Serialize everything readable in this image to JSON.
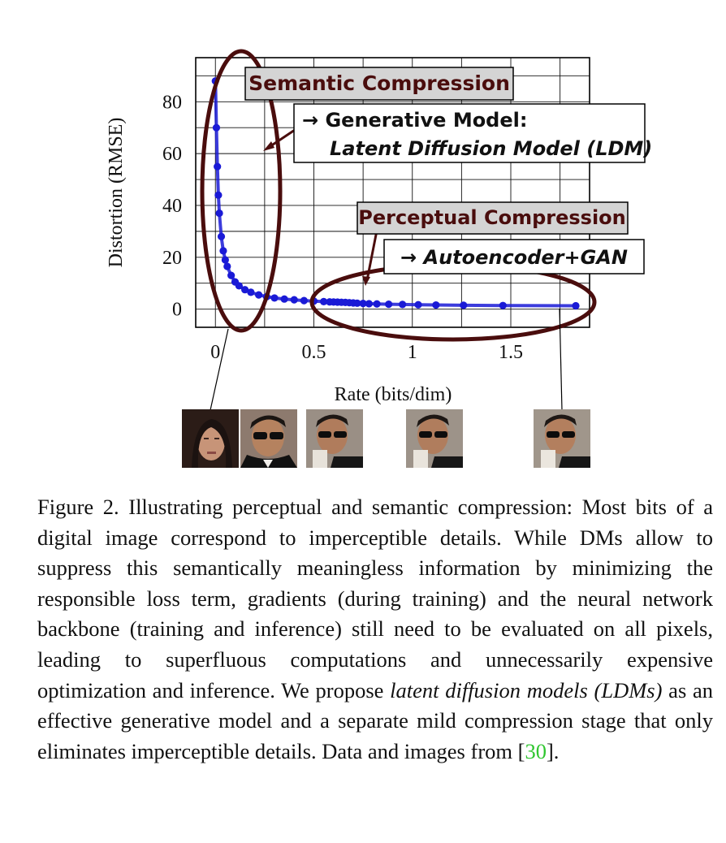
{
  "figure": {
    "semantic_label": "Semantic Compression",
    "generative_arrow_line1": "→ Generative Model:",
    "generative_arrow_line2": "Latent Diffusion Model (LDM)",
    "perceptual_label": "Perceptual Compression",
    "autoencoder_label": "→ Autoencoder+GAN",
    "thumbnail_count": 5
  },
  "chart_data": {
    "type": "scatter",
    "xlabel": "Rate (bits/dim)",
    "ylabel": "Distortion (RMSE)",
    "xlim": [
      -0.1,
      1.9
    ],
    "ylim": [
      -7,
      97
    ],
    "xticks": [
      "0",
      "0.5",
      "1",
      "1.5"
    ],
    "xtick_values": [
      0,
      0.5,
      1,
      1.5
    ],
    "yticks": [
      "0",
      "20",
      "40",
      "60",
      "80"
    ],
    "ytick_values": [
      0,
      20,
      40,
      60,
      80
    ],
    "grid": true,
    "series_color": "#1a1ad6",
    "x": [
      0.0,
      0.005,
      0.01,
      0.015,
      0.02,
      0.03,
      0.04,
      0.05,
      0.06,
      0.08,
      0.1,
      0.12,
      0.15,
      0.18,
      0.22,
      0.26,
      0.3,
      0.35,
      0.4,
      0.45,
      0.5,
      0.55,
      0.58,
      0.6,
      0.62,
      0.64,
      0.66,
      0.68,
      0.7,
      0.72,
      0.75,
      0.78,
      0.82,
      0.88,
      0.95,
      1.03,
      1.12,
      1.26,
      1.46,
      1.83
    ],
    "y": [
      88,
      70,
      55,
      44,
      37,
      28,
      22.5,
      19,
      16.5,
      13,
      10.5,
      9,
      7.5,
      6.5,
      5.5,
      4.8,
      4.3,
      3.9,
      3.6,
      3.3,
      3.1,
      2.9,
      2.8,
      2.75,
      2.7,
      2.65,
      2.6,
      2.5,
      2.4,
      2.3,
      2.2,
      2.1,
      2.0,
      1.9,
      1.8,
      1.7,
      1.6,
      1.5,
      1.4,
      1.3
    ]
  },
  "caption": {
    "fig_label": "Figure 2.",
    "text_a": "  Illustrating perceptual and semantic compression: Most bits of a digital image correspond to imperceptible details. While DMs allow to suppress this semantically meaningless information by minimizing the responsible loss term, gradients (during training) and the neural network backbone (training and inference) still need to be evaluated on all pixels, leading to superfluous computations and unnecessarily expensive optimization and inference. We propose ",
    "emph": "latent diffusion models (LDMs)",
    "text_b": " as an effective generative model and a separate mild compression stage that only eliminates imperceptible details. Data and images from [",
    "cite": "30",
    "text_c": "]."
  }
}
